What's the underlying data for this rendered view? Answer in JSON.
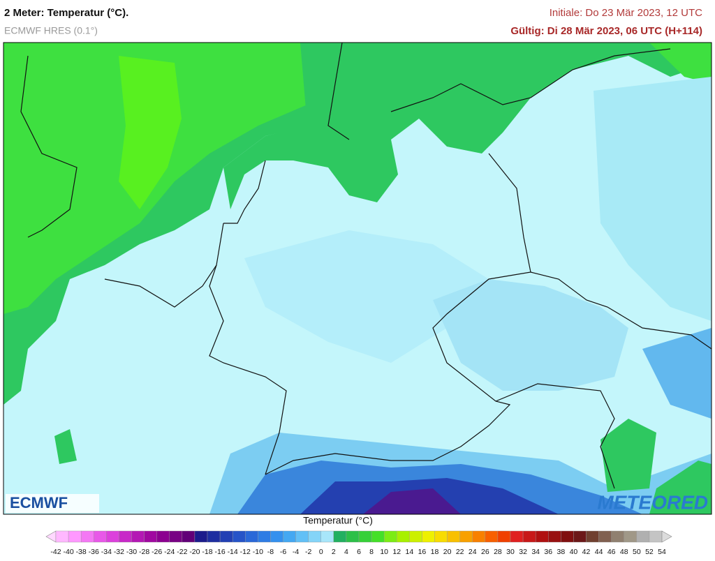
{
  "header": {
    "title": "2 Meter: Temperatur (°C).",
    "subtitle": "ECMWF HRES (0.1°)",
    "initiale": "Initiale: Do 23 Mär 2023, 12 UTC",
    "valid": "Gültig: Di 28 Mär 2023, 06 UTC (H+114)"
  },
  "logos": {
    "left": "ECMWF",
    "right": "METEORED"
  },
  "colorbar": {
    "title": "Temperatur (°C)",
    "ticks": [
      -42,
      -40,
      -38,
      -36,
      -34,
      -32,
      -30,
      -28,
      -26,
      -24,
      -22,
      -20,
      -18,
      -16,
      -14,
      -12,
      -10,
      -8,
      -6,
      -4,
      -2,
      0,
      2,
      4,
      6,
      8,
      10,
      12,
      14,
      16,
      18,
      20,
      22,
      24,
      26,
      28,
      30,
      32,
      34,
      36,
      38,
      40,
      42,
      44,
      46,
      48,
      50,
      52,
      54
    ],
    "colors": [
      "#ffd8ff",
      "#ffb8ff",
      "#ff98ff",
      "#f478f4",
      "#e858e8",
      "#dc40dc",
      "#c828c8",
      "#b418b4",
      "#a008a0",
      "#8c0090",
      "#780084",
      "#620078",
      "#1c1c8c",
      "#1e2ea0",
      "#2240b4",
      "#2654c8",
      "#2a68d8",
      "#2e7ce4",
      "#3490ee",
      "#44a8f2",
      "#62c0f6",
      "#84d4f8",
      "#a8e6fa",
      "#22b060",
      "#2cc048",
      "#36d038",
      "#44e028",
      "#7cec14",
      "#a8f000",
      "#ccf000",
      "#eef000",
      "#f8dc00",
      "#f8c000",
      "#f8a000",
      "#f88000",
      "#f86000",
      "#f04000",
      "#e02020",
      "#c81818",
      "#b01010",
      "#981010",
      "#801010",
      "#6c1818",
      "#704030",
      "#806050",
      "#908070",
      "#a09888",
      "#b0b0b0",
      "#c4c4c4",
      "#dcdcdc"
    ]
  }
}
